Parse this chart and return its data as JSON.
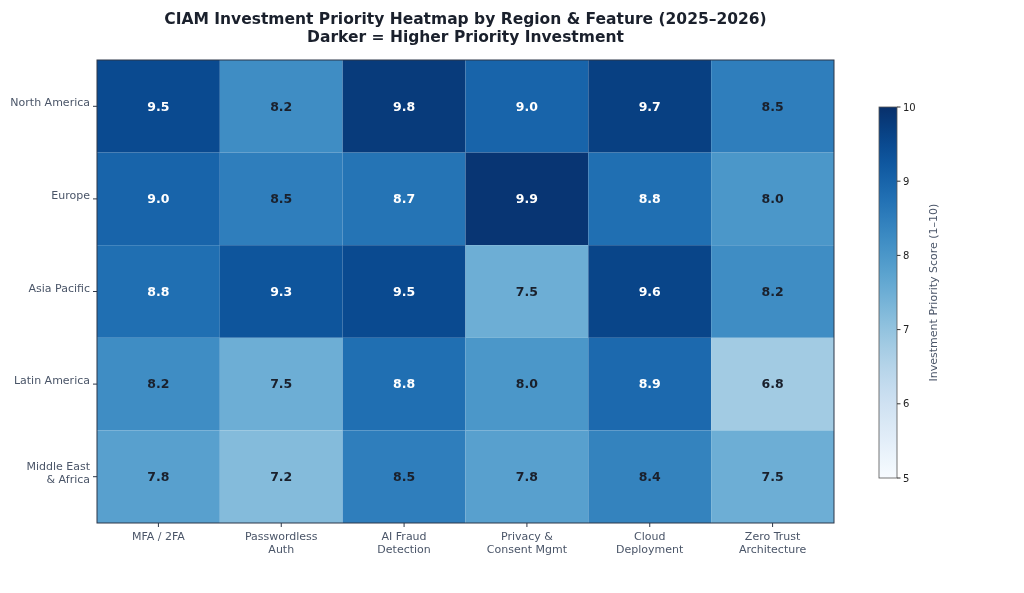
{
  "chart_data": {
    "type": "heatmap",
    "title": "CIAM Investment Priority Heatmap by Region & Feature (2025–2026)",
    "subtitle": "Darker = Higher Priority Investment",
    "categories": [
      "MFA / 2FA",
      "Passwordless\nAuth",
      "AI Fraud\nDetection",
      "Privacy &\nConsent Mgmt",
      "Cloud\nDeployment",
      "Zero Trust\nArchitecture"
    ],
    "y_categories": [
      "North America",
      "Europe",
      "Asia Pacific",
      "Latin America",
      "Middle East\n& Africa"
    ],
    "cells": [
      [
        9.5,
        8.2,
        9.8,
        9.0,
        9.7,
        8.5
      ],
      [
        9.0,
        8.5,
        8.7,
        9.9,
        8.8,
        8.0
      ],
      [
        8.8,
        9.3,
        9.5,
        7.5,
        9.6,
        8.2
      ],
      [
        8.2,
        7.5,
        8.8,
        8.0,
        8.9,
        6.8
      ],
      [
        7.8,
        7.2,
        8.5,
        7.8,
        8.4,
        7.5
      ]
    ],
    "cell_labels": [
      [
        "9.5",
        "8.2",
        "9.8",
        "9.0",
        "9.7",
        "8.5"
      ],
      [
        "9.0",
        "8.5",
        "8.7",
        "9.9",
        "8.8",
        "8.0"
      ],
      [
        "8.8",
        "9.3",
        "9.5",
        "7.5",
        "9.6",
        "8.2"
      ],
      [
        "8.2",
        "7.5",
        "8.8",
        "8.0",
        "8.9",
        "6.8"
      ],
      [
        "7.8",
        "7.2",
        "8.5",
        "7.8",
        "8.4",
        "7.5"
      ]
    ],
    "clim": [
      5,
      10
    ],
    "cticks": [
      5,
      6,
      7,
      8,
      9,
      10
    ],
    "clabel": "Investment Priority Score (1–10)"
  }
}
